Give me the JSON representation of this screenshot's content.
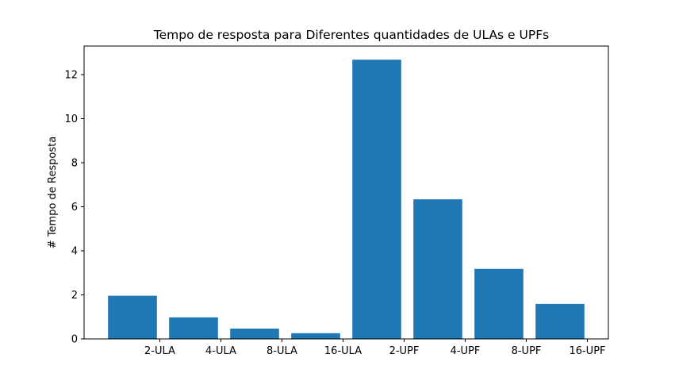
{
  "chart_data": {
    "type": "bar",
    "title": "Tempo de resposta para Diferentes quantidades de ULAs e UPFs",
    "xlabel": "",
    "ylabel": "#  Tempo de Resposta",
    "categories": [
      "2-ULA",
      "4-ULA",
      "8-ULA",
      "16-ULA",
      "2-UPF",
      "4-UPF",
      "8-UPF",
      "16-UPF"
    ],
    "values": [
      1.96,
      0.98,
      0.47,
      0.26,
      12.68,
      6.34,
      3.18,
      1.59
    ],
    "ylim": [
      0,
      13.3
    ],
    "yticks": [
      0,
      2,
      4,
      6,
      8,
      10,
      12
    ],
    "grid": false,
    "bar_color": "#1f77b4"
  }
}
